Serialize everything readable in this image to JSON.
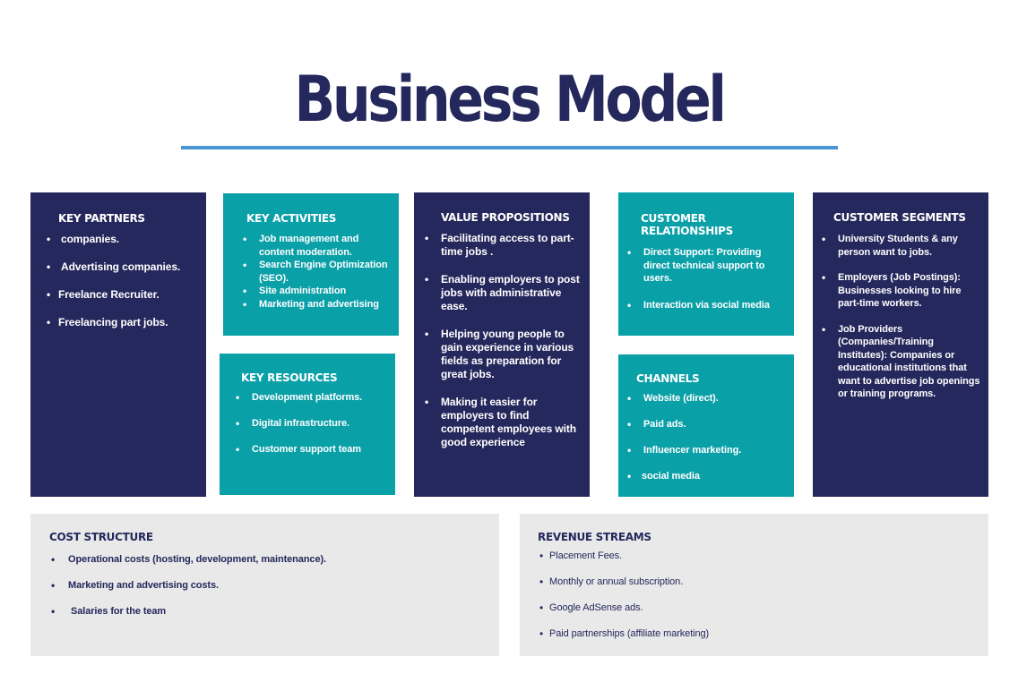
{
  "title": "Business Model",
  "key_partners": {
    "heading": "KEY PARTNERS",
    "items": [
      "companies.",
      "Advertising companies.",
      "Freelance Recruiter.",
      "Freelancing  part jobs."
    ]
  },
  "key_activities": {
    "heading": "KEY ACTIVITIES",
    "items": [
      "Job management and content moderation.",
      "Search Engine Optimization (SEO).",
      "Site administration",
      "Marketing and advertising"
    ]
  },
  "key_resources": {
    "heading": "KEY RESOURCES",
    "items": [
      "Development platforms.",
      "Digital infrastructure.",
      "Customer support team"
    ]
  },
  "value_propositions": {
    "heading": "VALUE PROPOSITIONS",
    "items": [
      "Facilitating access to part-time jobs .",
      "Enabling employers to post jobs with administrative ease.",
      "Helping young people to gain experience in various fields as preparation for great jobs.",
      "Making it easier for employers to find competent employees with good experience"
    ]
  },
  "customer_relationships": {
    "heading": "CUSTOMER RELATIONSHIPS",
    "items": [
      "Direct Support: Providing direct technical support to users.",
      "Interaction via social media"
    ]
  },
  "channels": {
    "heading": "CHANNELS",
    "items": [
      "Website (direct).",
      "Paid ads.",
      "Influencer marketing.",
      "social media"
    ]
  },
  "customer_segments": {
    "heading": "CUSTOMER SEGMENTS",
    "items": [
      "University Students & any person want to jobs.",
      "Employers (Job Postings): Businesses looking to hire part-time workers.",
      "Job Providers (Companies/Training Institutes): Companies or educational institutions that want to advertise job openings or training programs."
    ]
  },
  "cost_structure": {
    "heading": "COST STRUCTURE",
    "items": [
      "Operational costs (hosting, development, maintenance).",
      "Marketing and advertising costs.",
      "Salaries for the team"
    ]
  },
  "revenue_streams": {
    "heading": "REVENUE STREAMS",
    "items": [
      "Placement Fees.",
      "Monthly or annual subscription.",
      "Google AdSense ads.",
      "Paid partnerships (affiliate marketing)"
    ]
  },
  "colors": {
    "navy": "#25285c",
    "teal": "#0aa0a8",
    "grey": "#e9e9e9",
    "rule": "#4a95d3"
  }
}
